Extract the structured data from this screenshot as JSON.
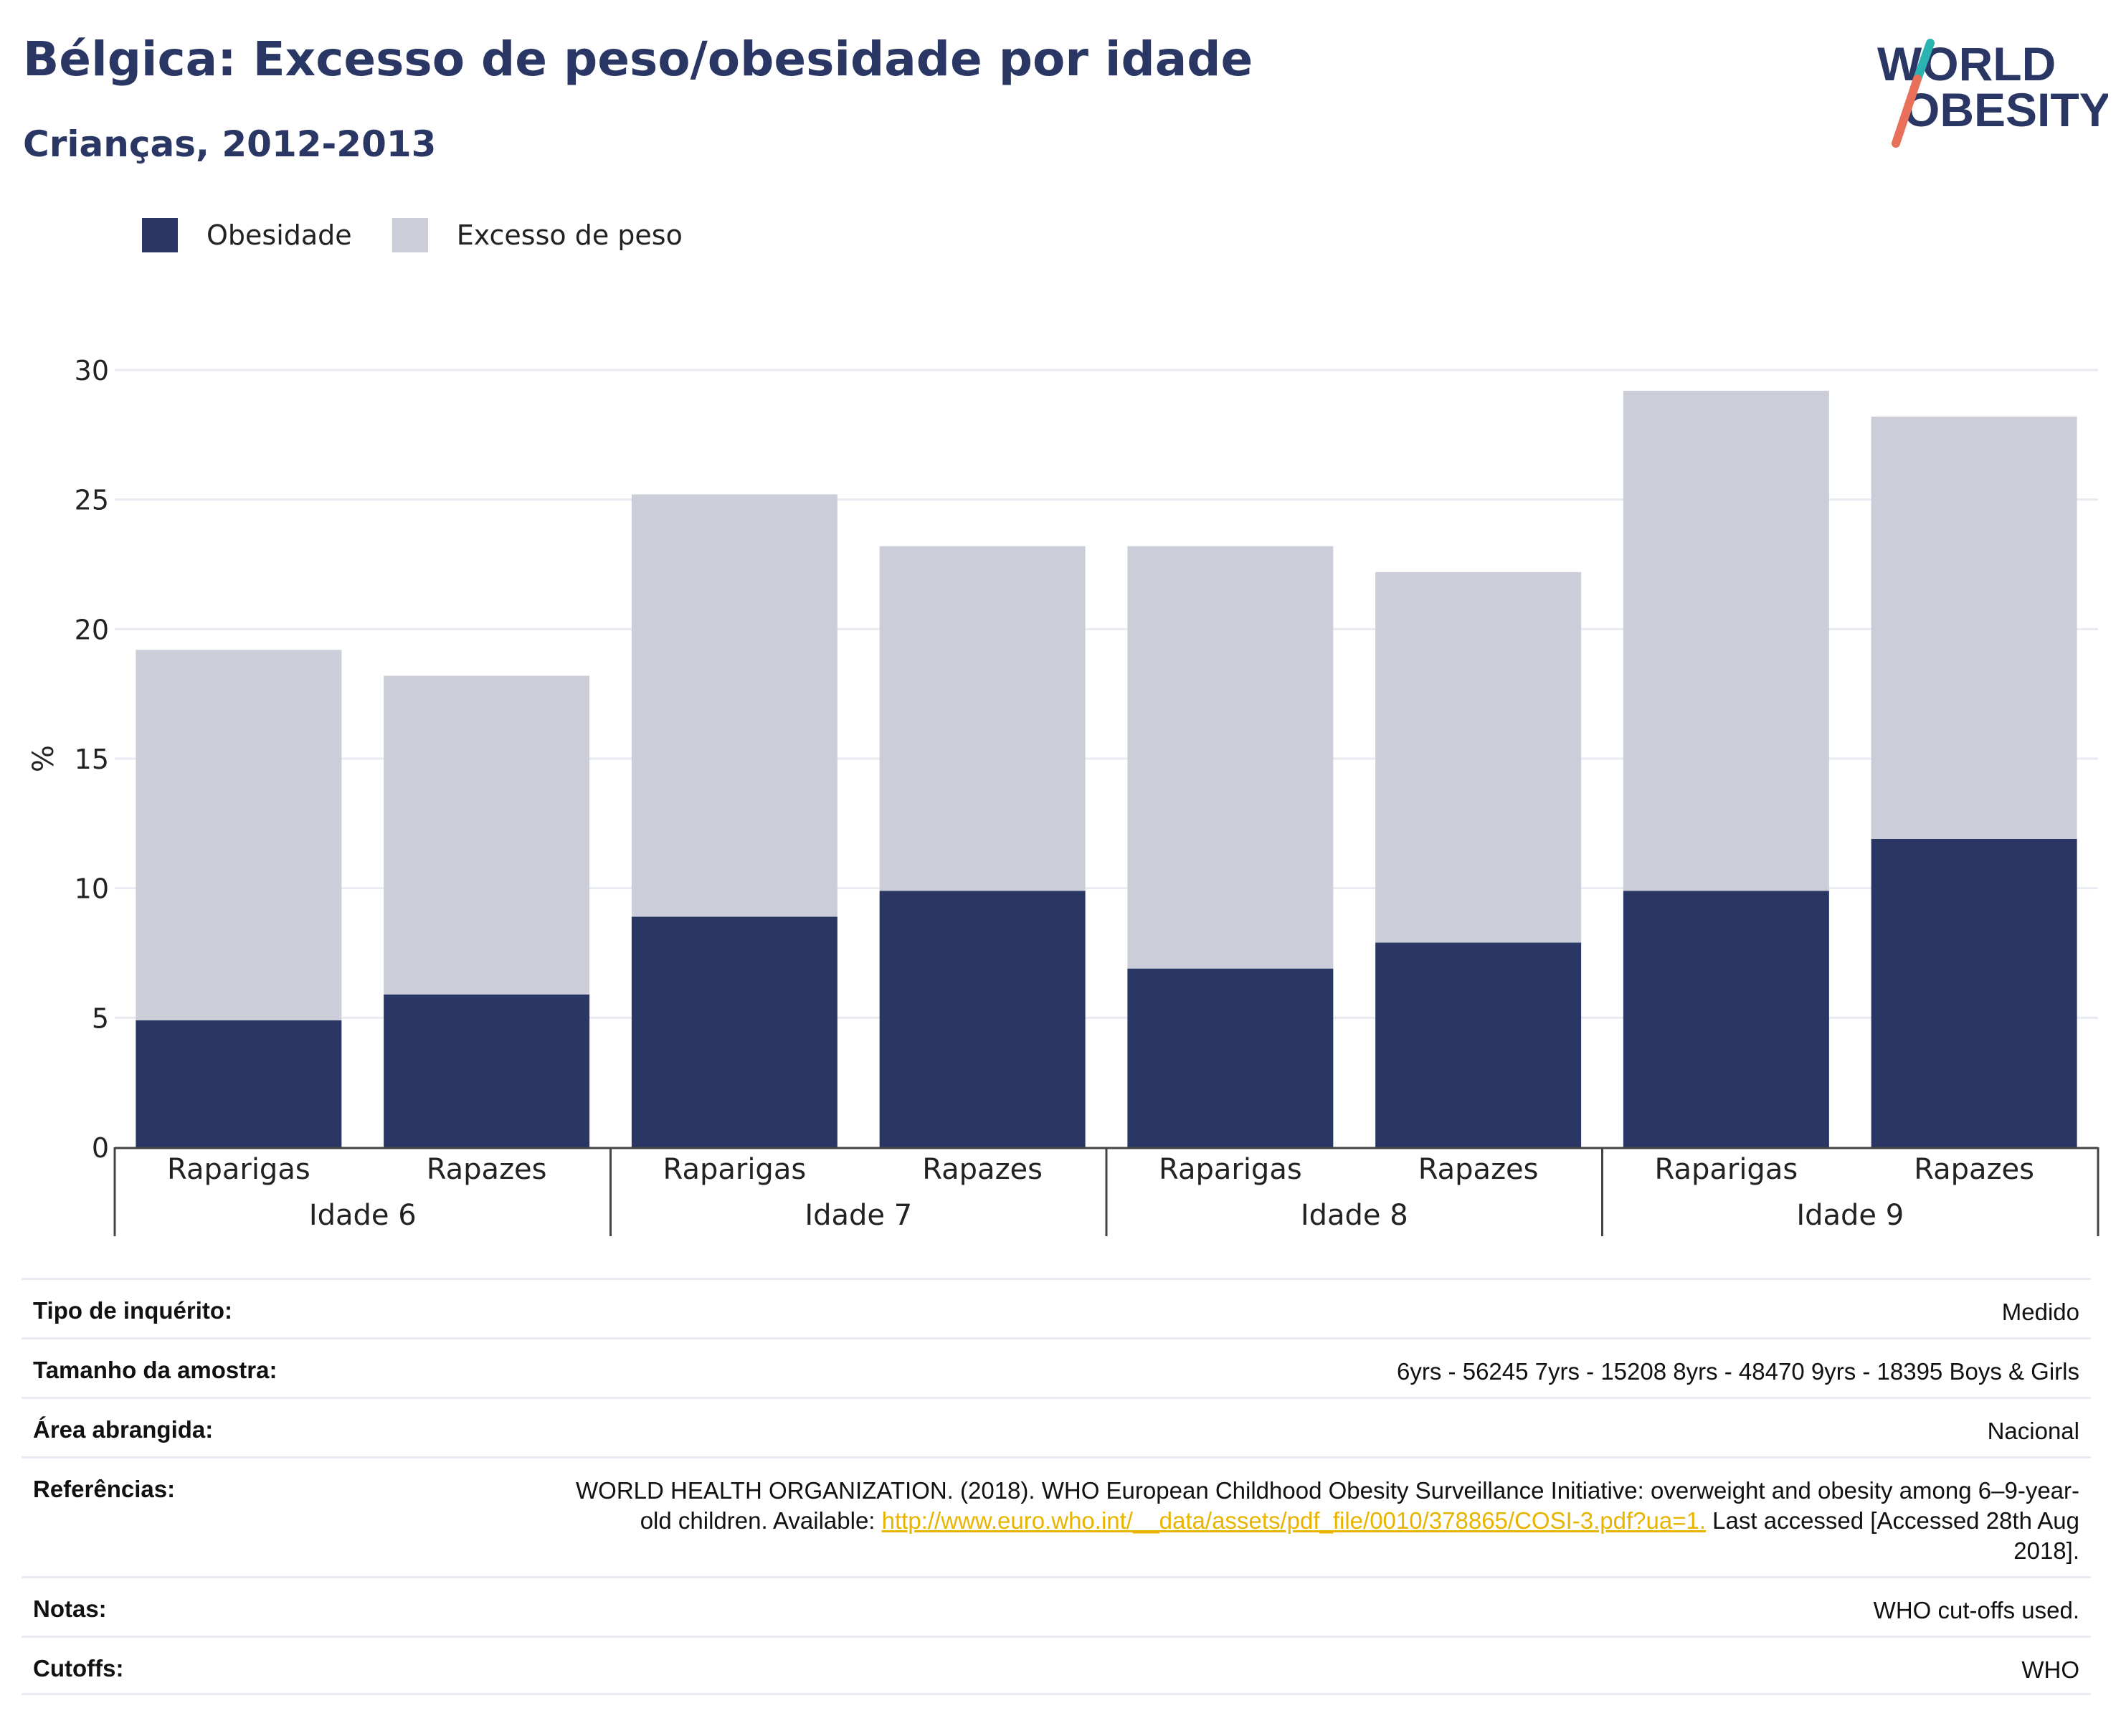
{
  "header": {
    "title": "Bélgica: Excesso de peso/obesidade por idade",
    "subtitle": "Crianças, 2012-2013"
  },
  "logo": {
    "line1": "WORLD",
    "line2": "OBESITY"
  },
  "colors": {
    "obesity": "#2a3663",
    "overweight": "#cbcdd9",
    "title": "#2a3663",
    "link": "#e8b400"
  },
  "chart_data": {
    "type": "bar",
    "stacked": true,
    "categories": [
      "Raparigas",
      "Rapazes",
      "Raparigas",
      "Rapazes",
      "Raparigas",
      "Rapazes",
      "Raparigas",
      "Rapazes"
    ],
    "groups": [
      "Idade 6",
      "Idade 7",
      "Idade 8",
      "Idade 9"
    ],
    "series": [
      {
        "name": "Obesidade",
        "values": [
          4.9,
          5.9,
          8.9,
          9.9,
          6.9,
          7.9,
          9.9,
          11.9
        ]
      },
      {
        "name": "Excesso de peso",
        "values": [
          14.3,
          12.3,
          16.3,
          13.3,
          16.3,
          14.3,
          19.3,
          16.3
        ]
      }
    ],
    "ylabel": "%",
    "ylim": [
      0,
      30
    ],
    "yticks": [
      0,
      5,
      10,
      15,
      20,
      25,
      30
    ],
    "grid": true,
    "legend_position": "top-left"
  },
  "meta": [
    {
      "label": "Tipo de inquérito:",
      "value": "Medido"
    },
    {
      "label": "Tamanho da amostra:",
      "value": "6yrs - 56245 7yrs - 15208 8yrs - 48470 9yrs - 18395 Boys & Girls"
    },
    {
      "label": "Área abrangida:",
      "value": "Nacional"
    },
    {
      "label": "Referências:",
      "value_prefix": "WORLD HEALTH ORGANIZATION. (2018). WHO European Childhood Obesity Surveillance Initiative: overweight and obesity among 6–9-year-old children. Available: ",
      "link": "http://www.euro.who.int/__data/assets/pdf_file/0010/378865/COSI-3.pdf?ua=1.",
      "value_suffix": " Last accessed [Accessed 28th Aug 2018]."
    },
    {
      "label": "Notas:",
      "value": "WHO cut-offs used."
    },
    {
      "label": "Cutoffs:",
      "value": "WHO"
    }
  ]
}
